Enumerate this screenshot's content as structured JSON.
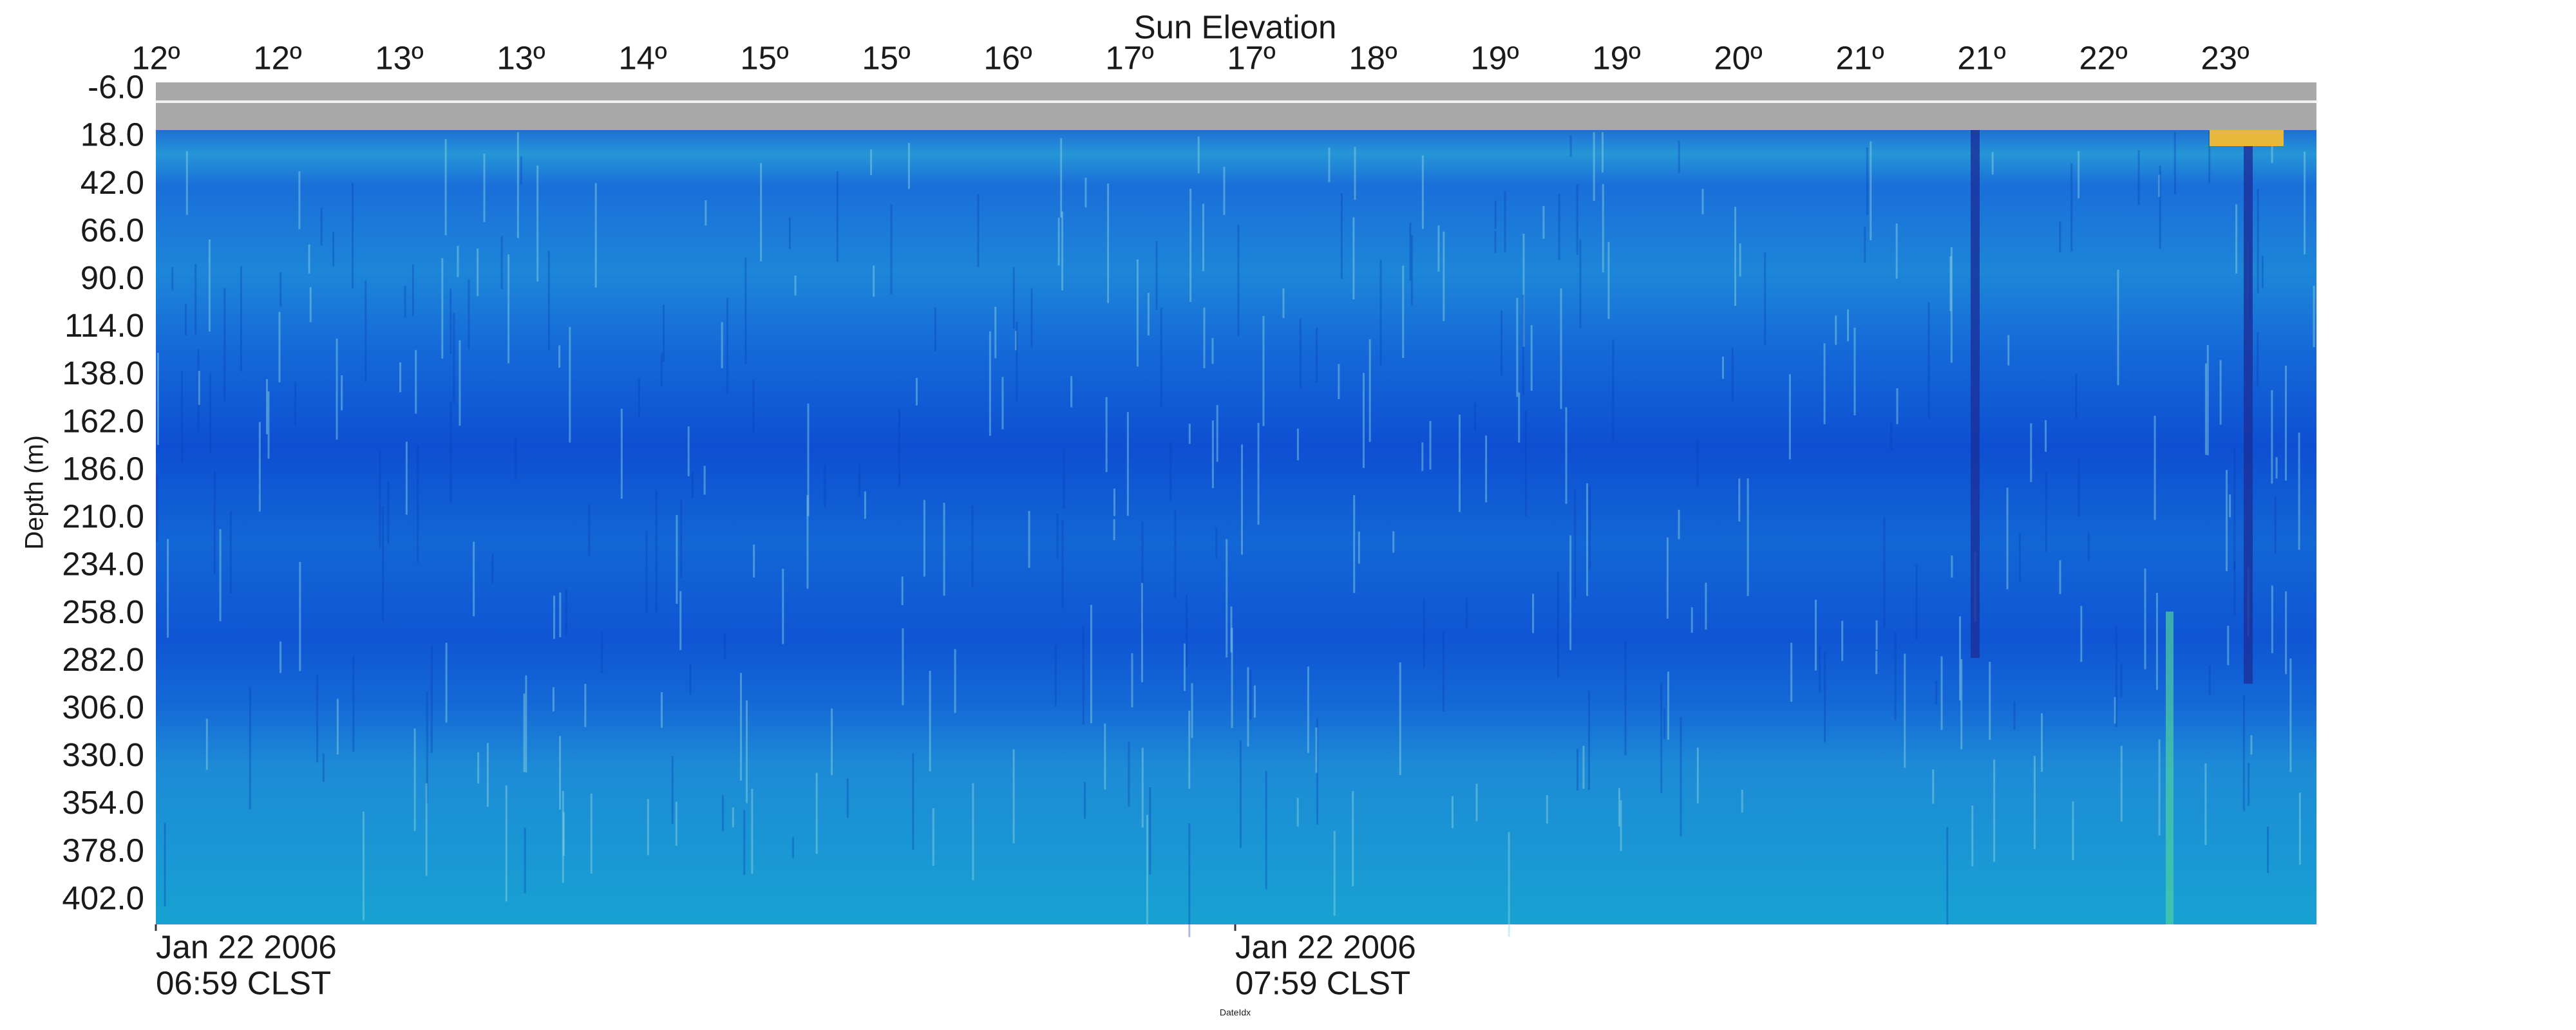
{
  "chart_data": {
    "type": "heatmap",
    "title": "Sun Elevation",
    "ylabel": "Depth (m)",
    "xlabel": "DateIdx",
    "top_ticks": [
      "12º",
      "12º",
      "13º",
      "13º",
      "14º",
      "15º",
      "15º",
      "16º",
      "17º",
      "17º",
      "18º",
      "19º",
      "19º",
      "20º",
      "21º",
      "21º",
      "22º",
      "23º"
    ],
    "ylim": [
      -9.6,
      414
    ],
    "yticks": [
      {
        "value": -6,
        "label": "-6.0"
      },
      {
        "value": 18,
        "label": "18.0"
      },
      {
        "value": 42,
        "label": "42.0"
      },
      {
        "value": 66,
        "label": "66.0"
      },
      {
        "value": 90,
        "label": "90.0"
      },
      {
        "value": 114,
        "label": "114.0"
      },
      {
        "value": 138,
        "label": "138.0"
      },
      {
        "value": 162,
        "label": "162.0"
      },
      {
        "value": 186,
        "label": "186.0"
      },
      {
        "value": 210,
        "label": "210.0"
      },
      {
        "value": 234,
        "label": "234.0"
      },
      {
        "value": 258,
        "label": "258.0"
      },
      {
        "value": 282,
        "label": "282.0"
      },
      {
        "value": 306,
        "label": "306.0"
      },
      {
        "value": 330,
        "label": "330.0"
      },
      {
        "value": 354,
        "label": "354.0"
      },
      {
        "value": 378,
        "label": "378.0"
      },
      {
        "value": 402,
        "label": "402.0"
      }
    ],
    "xticks": [
      {
        "date": "Jan 22 2006",
        "time": "06:59 CLST"
      },
      {
        "date": "Jan 22 2006",
        "time": "07:59 CLST"
      }
    ]
  }
}
